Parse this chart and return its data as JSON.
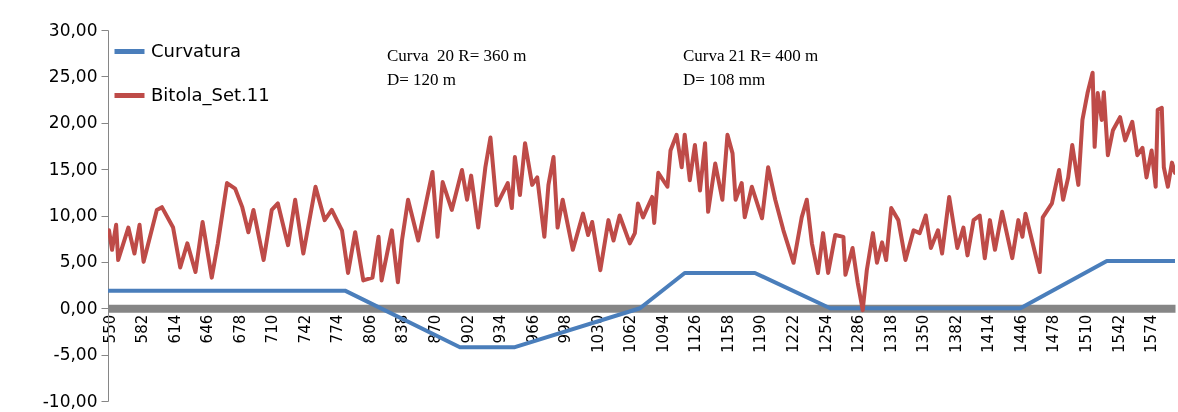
{
  "chart_data": {
    "type": "line",
    "series": [
      {
        "name": "Curvatura",
        "color": "#4a7ebb",
        "x": [
          550,
          782,
          895,
          949,
          1072,
          1116,
          1185,
          1259,
          1446,
          1531,
          1598
        ],
        "values": [
          1.9,
          1.9,
          -4.2,
          -4.2,
          0,
          3.8,
          3.8,
          0,
          0,
          5.1,
          5.1
        ]
      },
      {
        "name": "Bitola_Set.11",
        "color": "#be4b48",
        "x": [
          550,
          553,
          557,
          559,
          569,
          575,
          580,
          584,
          597,
          602,
          613,
          620,
          627,
          635,
          642,
          651,
          657,
          666,
          674,
          681,
          687,
          692,
          702,
          710,
          716,
          726,
          733,
          741,
          753,
          762,
          769,
          779,
          785,
          792,
          800,
          809,
          815,
          818,
          828,
          834,
          838,
          844,
          854,
          868,
          873,
          878,
          887,
          897,
          902,
          906,
          913,
          920,
          925,
          931,
          942,
          946,
          949,
          954,
          959,
          966,
          971,
          978,
          982,
          987,
          991,
          996,
          1006,
          1016,
          1021,
          1025,
          1033,
          1041,
          1046,
          1052,
          1062,
          1067,
          1070,
          1075,
          1084,
          1086,
          1090,
          1099,
          1102,
          1108,
          1113,
          1116,
          1121,
          1126,
          1131,
          1136,
          1139,
          1146,
          1153,
          1158,
          1163,
          1166,
          1172,
          1175,
          1182,
          1192,
          1198,
          1205,
          1213,
          1223,
          1231,
          1236,
          1241,
          1247,
          1252,
          1257,
          1264,
          1272,
          1274,
          1281,
          1286,
          1291,
          1295,
          1301,
          1305,
          1310,
          1314,
          1319,
          1326,
          1333,
          1341,
          1347,
          1353,
          1358,
          1365,
          1369,
          1376,
          1384,
          1390,
          1394,
          1400,
          1406,
          1411,
          1416,
          1421,
          1428,
          1438,
          1444,
          1448,
          1451,
          1459,
          1465,
          1468,
          1477,
          1484,
          1488,
          1493,
          1497,
          1503,
          1507,
          1512,
          1517,
          1519,
          1522,
          1526,
          1528,
          1532,
          1537,
          1544,
          1549,
          1556,
          1561,
          1566,
          1570,
          1575,
          1579,
          1581,
          1585,
          1587,
          1591,
          1595,
          1598
        ],
        "values": [
          8.4,
          6.3,
          9.0,
          5.2,
          8.7,
          5.9,
          9.0,
          5.0,
          10.6,
          10.9,
          8.7,
          4.4,
          7.0,
          3.9,
          9.3,
          3.3,
          7.0,
          13.5,
          12.9,
          10.9,
          8.2,
          10.6,
          5.2,
          10.6,
          11.3,
          6.8,
          11.7,
          5.9,
          13.1,
          9.5,
          10.6,
          8.4,
          3.8,
          8.2,
          3.0,
          3.3,
          7.7,
          3.0,
          8.4,
          2.8,
          7.3,
          11.7,
          7.3,
          14.7,
          7.7,
          13.6,
          10.6,
          14.9,
          11.7,
          14.3,
          8.7,
          15.2,
          18.4,
          11.1,
          13.5,
          10.8,
          16.3,
          12.2,
          17.8,
          13.3,
          14.1,
          7.7,
          13.3,
          16.3,
          8.7,
          11.7,
          6.3,
          10.2,
          7.9,
          9.3,
          4.1,
          9.5,
          7.3,
          10.0,
          7.0,
          8.1,
          11.3,
          9.8,
          12.0,
          9.2,
          14.6,
          13.1,
          17.0,
          18.7,
          15.2,
          18.7,
          13.8,
          17.6,
          12.7,
          17.8,
          10.4,
          15.6,
          11.7,
          18.7,
          16.7,
          11.7,
          13.5,
          9.8,
          13.1,
          9.7,
          15.2,
          11.7,
          8.4,
          4.9,
          9.8,
          11.7,
          7.0,
          3.8,
          8.1,
          3.8,
          7.9,
          7.7,
          3.6,
          6.5,
          2.8,
          -0.2,
          4.1,
          8.1,
          4.9,
          7.1,
          5.2,
          10.8,
          9.5,
          5.2,
          8.4,
          8.1,
          10.0,
          6.5,
          8.4,
          5.9,
          12.0,
          6.5,
          8.7,
          5.7,
          9.5,
          10.0,
          5.4,
          9.5,
          6.3,
          10.4,
          5.4,
          9.5,
          7.7,
          10.2,
          6.6,
          3.9,
          9.8,
          11.3,
          14.9,
          11.7,
          14.1,
          17.6,
          13.3,
          20.3,
          23.2,
          25.4,
          17.4,
          23.2,
          20.3,
          23.3,
          16.5,
          19.2,
          20.6,
          18.1,
          20.1,
          16.5,
          17.3,
          14.1,
          17.0,
          13.1,
          21.4,
          21.6,
          15.2,
          13.1,
          15.7,
          14.6
        ]
      }
    ],
    "xlim": [
      549,
      1598
    ],
    "xticks": [
      550,
      582,
      614,
      646,
      678,
      710,
      742,
      774,
      806,
      838,
      870,
      902,
      934,
      966,
      998,
      1030,
      1062,
      1094,
      1126,
      1158,
      1190,
      1222,
      1254,
      1286,
      1318,
      1350,
      1382,
      1414,
      1446,
      1478,
      1510,
      1542,
      1574
    ],
    "ylim": [
      -10,
      30
    ],
    "yticks": [
      {
        "value": -10,
        "label": "-10,00"
      },
      {
        "value": -5,
        "label": "-5,00"
      },
      {
        "value": 0,
        "label": "0,00"
      },
      {
        "value": 5,
        "label": "5,00"
      },
      {
        "value": 10,
        "label": "10,00"
      },
      {
        "value": 15,
        "label": "15,00"
      },
      {
        "value": 20,
        "label": "20,00"
      },
      {
        "value": 25,
        "label": "25,00"
      },
      {
        "value": 30,
        "label": "30,00"
      }
    ],
    "annotations": [
      "Curva  20 R= 360 m\nD= 120 m",
      "Curva 21 R= 400 m\nD= 108 mm"
    ],
    "legend": "top left",
    "grid": false
  }
}
